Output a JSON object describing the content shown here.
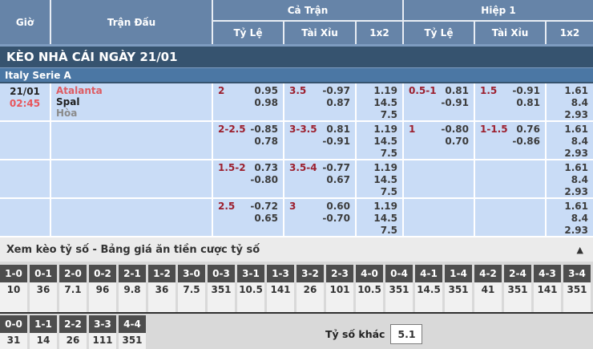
{
  "header": {
    "col_time": "Giờ",
    "col_match": "Trận Đấu",
    "group_full": "Cả Trận",
    "group_half": "Hiệp 1",
    "sub_handicap": "Tỷ Lệ",
    "sub_overunder": "Tài Xỉu",
    "sub_1x2": "1x2"
  },
  "title_bar": "KÈO NHÀ CÁI NGÀY 21/01",
  "league": "Italy Serie A",
  "match": {
    "date": "21/01",
    "time": "02:45",
    "home": "Atalanta",
    "away": "Spal",
    "draw": "Hòa"
  },
  "odds_rows": [
    {
      "ft_hc": [
        "2",
        "0.95",
        "0.98"
      ],
      "ft_ou": [
        "3.5",
        "-0.97",
        "0.87"
      ],
      "ft_1x2": [
        "1.19",
        "14.5",
        "7.5"
      ],
      "h1_hc": [
        "0.5-1",
        "0.81",
        "-0.91"
      ],
      "h1_ou": [
        "1.5",
        "-0.91",
        "0.81"
      ],
      "h1_1x2": [
        "1.61",
        "8.4",
        "2.93"
      ]
    },
    {
      "ft_hc": [
        "2-2.5",
        "-0.85",
        "0.78"
      ],
      "ft_ou": [
        "3-3.5",
        "0.81",
        "-0.91"
      ],
      "ft_1x2": [
        "1.19",
        "14.5",
        "7.5"
      ],
      "h1_hc": [
        "1",
        "-0.80",
        "0.70"
      ],
      "h1_ou": [
        "1-1.5",
        "0.76",
        "-0.86"
      ],
      "h1_1x2": [
        "1.61",
        "8.4",
        "2.93"
      ]
    },
    {
      "ft_hc": [
        "1.5-2",
        "0.73",
        "-0.80"
      ],
      "ft_ou": [
        "3.5-4",
        "-0.77",
        "0.67"
      ],
      "ft_1x2": [
        "1.19",
        "14.5",
        "7.5"
      ],
      "h1_hc": [
        "",
        "",
        ""
      ],
      "h1_ou": [
        "",
        "",
        ""
      ],
      "h1_1x2": [
        "1.61",
        "8.4",
        "2.93"
      ]
    },
    {
      "ft_hc": [
        "2.5",
        "-0.72",
        "0.65"
      ],
      "ft_ou": [
        "3",
        "0.60",
        "-0.70"
      ],
      "ft_1x2": [
        "1.19",
        "14.5",
        "7.5"
      ],
      "h1_hc": [
        "",
        "",
        ""
      ],
      "h1_ou": [
        "",
        "",
        ""
      ],
      "h1_1x2": [
        "1.61",
        "8.4",
        "2.93"
      ]
    }
  ],
  "score_panel": {
    "title": "Xem kèo tỷ số - Bảng giá ăn tiền cược tỷ số",
    "collapse_icon": "▲",
    "row1": [
      {
        "score": "1-0",
        "odds": "10"
      },
      {
        "score": "0-1",
        "odds": "36"
      },
      {
        "score": "2-0",
        "odds": "7.1"
      },
      {
        "score": "0-2",
        "odds": "96"
      },
      {
        "score": "2-1",
        "odds": "9.8"
      },
      {
        "score": "1-2",
        "odds": "36"
      },
      {
        "score": "3-0",
        "odds": "7.5"
      },
      {
        "score": "0-3",
        "odds": "351"
      },
      {
        "score": "3-1",
        "odds": "10.5"
      },
      {
        "score": "1-3",
        "odds": "141"
      },
      {
        "score": "3-2",
        "odds": "26"
      },
      {
        "score": "2-3",
        "odds": "101"
      },
      {
        "score": "4-0",
        "odds": "10.5"
      },
      {
        "score": "0-4",
        "odds": "351"
      },
      {
        "score": "4-1",
        "odds": "14.5"
      },
      {
        "score": "1-4",
        "odds": "351"
      },
      {
        "score": "4-2",
        "odds": "41"
      },
      {
        "score": "2-4",
        "odds": "351"
      },
      {
        "score": "4-3",
        "odds": "141"
      },
      {
        "score": "3-4",
        "odds": "351"
      }
    ],
    "row2": [
      {
        "score": "0-0",
        "odds": "31"
      },
      {
        "score": "1-1",
        "odds": "14"
      },
      {
        "score": "2-2",
        "odds": "26"
      },
      {
        "score": "3-3",
        "odds": "111"
      },
      {
        "score": "4-4",
        "odds": "351"
      }
    ],
    "other_label": "Tỷ số khác",
    "other_value": "5.1"
  },
  "colors": {
    "header_bg": "#6684a8",
    "title_bar_bg": "#36536f",
    "league_bar_bg": "#4b77a4",
    "row_bg": "#c9dcf6",
    "handicap_red": "#9c1f2e",
    "team_home_red": "#dd5c63",
    "time_red": "#e8565c",
    "score_box_bg": "#4d4d4d",
    "panel_bg": "#d9d9d9"
  }
}
